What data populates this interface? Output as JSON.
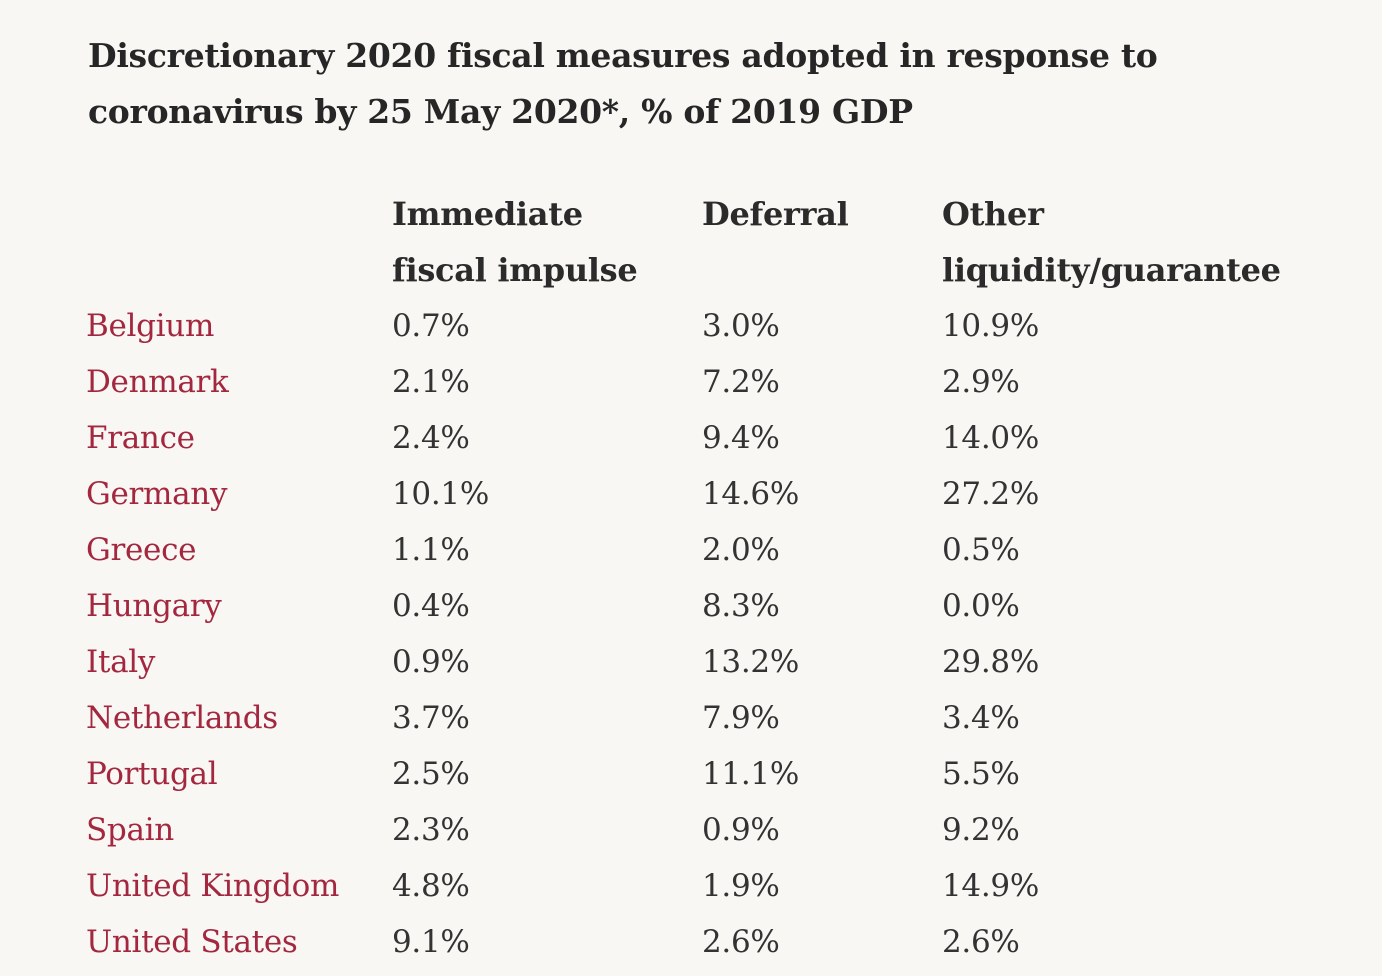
{
  "colors": {
    "background": "#f8f7f4",
    "text": "#2b2b2b",
    "country_link": "#a3283f"
  },
  "chart_data": {
    "type": "table",
    "title": "Discretionary 2020 fiscal measures adopted in response to coronavirus by 25 May 2020*, % of 2019 GDP",
    "columns": [
      "",
      "Immediate\nfiscal impulse",
      "Deferral",
      "Other\nliquidity/guarantee"
    ],
    "rows": [
      {
        "country": "Belgium",
        "values": [
          "0.7%",
          "3.0%",
          "10.9%"
        ]
      },
      {
        "country": "Denmark",
        "values": [
          "2.1%",
          "7.2%",
          "2.9%"
        ]
      },
      {
        "country": "France",
        "values": [
          "2.4%",
          "9.4%",
          "14.0%"
        ]
      },
      {
        "country": "Germany",
        "values": [
          "10.1%",
          "14.6%",
          "27.2%"
        ]
      },
      {
        "country": "Greece",
        "values": [
          "1.1%",
          "2.0%",
          "0.5%"
        ]
      },
      {
        "country": "Hungary",
        "values": [
          "0.4%",
          "8.3%",
          "0.0%"
        ]
      },
      {
        "country": "Italy",
        "values": [
          "0.9%",
          "13.2%",
          "29.8%"
        ]
      },
      {
        "country": "Netherlands",
        "values": [
          "3.7%",
          "7.9%",
          "3.4%"
        ]
      },
      {
        "country": "Portugal",
        "values": [
          "2.5%",
          "11.1%",
          "5.5%"
        ]
      },
      {
        "country": "Spain",
        "values": [
          "2.3%",
          "0.9%",
          "9.2%"
        ]
      },
      {
        "country": "United Kingdom",
        "values": [
          "4.8%",
          "1.9%",
          "14.9%"
        ]
      },
      {
        "country": "United States",
        "values": [
          "9.1%",
          "2.6%",
          "2.6%"
        ]
      }
    ]
  }
}
